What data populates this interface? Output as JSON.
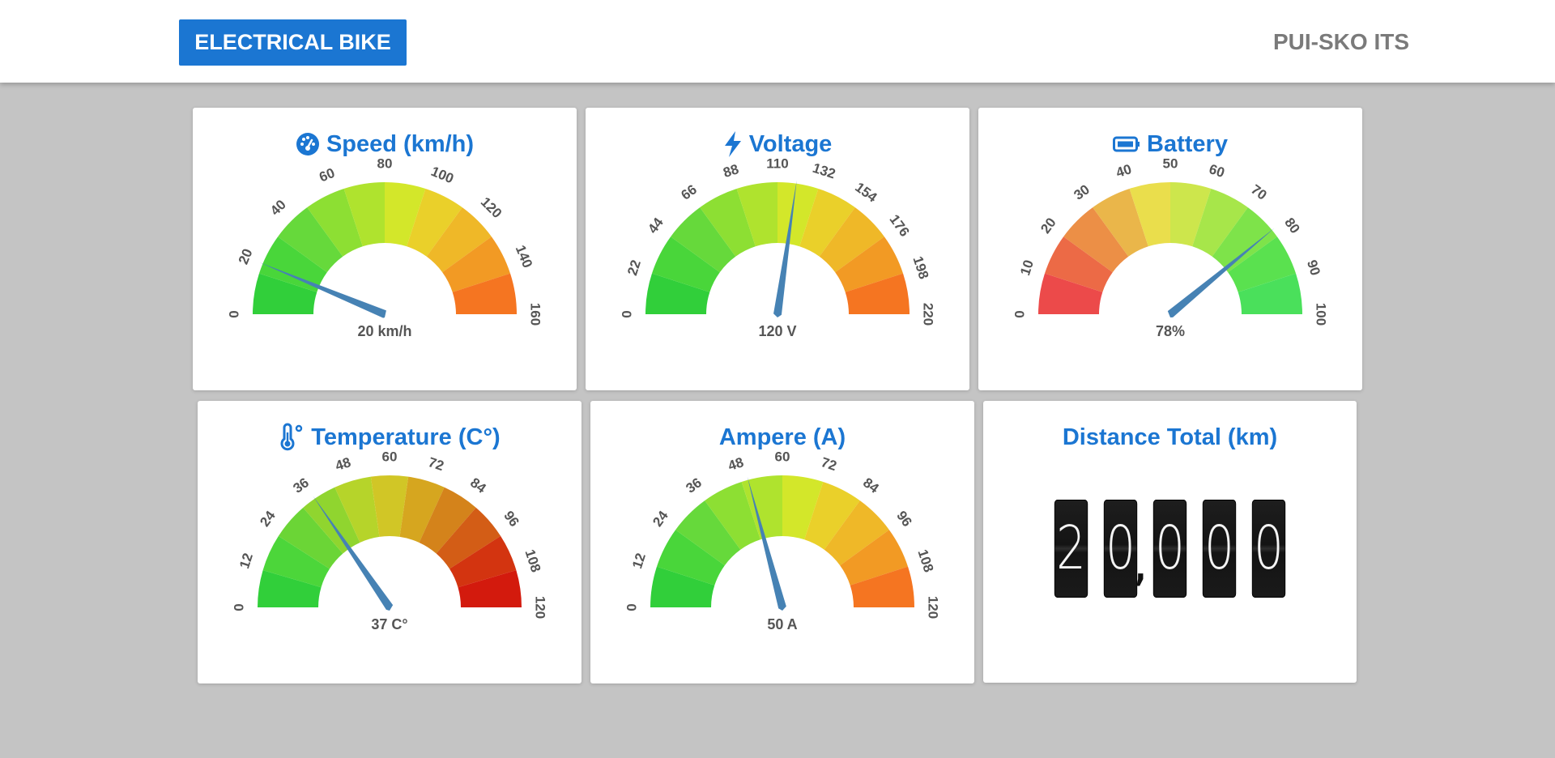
{
  "header": {
    "brand_label": "ELECTRICAL BIKE",
    "org_label": "PUI-SKO ITS"
  },
  "colors": {
    "accent": "#1b76d2",
    "needle": "#4682b4",
    "background": "#c4c4c4"
  },
  "gauges": [
    {
      "id": "speed",
      "title": "Speed (km/h)",
      "icon": "speedometer-icon",
      "min": 0,
      "max": 160,
      "ticks": [
        "0",
        "20",
        "40",
        "60",
        "80",
        "100",
        "120",
        "140",
        "160"
      ],
      "value": 20,
      "readout": "20 km/h",
      "colors": [
        "#31cf3a",
        "#49d63a",
        "#66d93b",
        "#8ddf33",
        "#afe32e",
        "#d3e72a",
        "#ead02a",
        "#efb828",
        "#f29a24",
        "#f57521"
      ]
    },
    {
      "id": "voltage",
      "title": "Voltage",
      "icon": "lightning-bolt-icon",
      "min": 0,
      "max": 220,
      "ticks": [
        "0",
        "22",
        "44",
        "66",
        "88",
        "110",
        "132",
        "154",
        "176",
        "198",
        "220"
      ],
      "value": 120,
      "readout": "120 V",
      "colors": [
        "#31cf3a",
        "#49d63a",
        "#66d93b",
        "#8ddf33",
        "#afe32e",
        "#d3e72a",
        "#ead02a",
        "#efb828",
        "#f29a24",
        "#f57521"
      ]
    },
    {
      "id": "battery",
      "title": "Battery",
      "icon": "battery-icon",
      "min": 0,
      "max": 100,
      "ticks": [
        "0",
        "10",
        "20",
        "30",
        "40",
        "50",
        "60",
        "70",
        "80",
        "90",
        "100"
      ],
      "value": 78,
      "readout": "78%",
      "colors": [
        "#ec4a4a",
        "#ec6a46",
        "#ec8f46",
        "#eab64a",
        "#eade4c",
        "#cde64c",
        "#a7e64a",
        "#7ee34a",
        "#5ae14f",
        "#4ae05b"
      ]
    },
    {
      "id": "temperature",
      "title": "Temperature (C°)",
      "icon": "thermometer-icon",
      "min": 0,
      "max": 120,
      "ticks": [
        "0",
        "12",
        "24",
        "36",
        "48",
        "60",
        "72",
        "84",
        "96",
        "108",
        "120"
      ],
      "value": 37,
      "readout": "37 C°",
      "colors": [
        "#31cf3a",
        "#4cd63a",
        "#6bd536",
        "#90d52f",
        "#b6d42a",
        "#d1c626",
        "#d6a61f",
        "#d4831b",
        "#d35d16",
        "#d33410",
        "#d31a0d"
      ]
    },
    {
      "id": "ampere",
      "title": "Ampere (A)",
      "icon": "",
      "min": 0,
      "max": 120,
      "ticks": [
        "0",
        "12",
        "24",
        "36",
        "48",
        "60",
        "72",
        "84",
        "96",
        "108",
        "120"
      ],
      "value": 50,
      "readout": "50 A",
      "colors": [
        "#31cf3a",
        "#49d63a",
        "#66d93b",
        "#8ddf33",
        "#afe32e",
        "#d3e72a",
        "#ead02a",
        "#efb828",
        "#f29a24",
        "#f57521"
      ]
    }
  ],
  "distance": {
    "title": "Distance Total (km)",
    "value": "20,000",
    "digits": [
      "2",
      "0",
      "0",
      "0",
      "0"
    ]
  }
}
